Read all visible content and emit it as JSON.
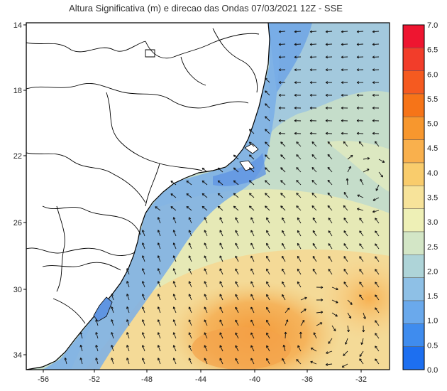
{
  "title": "Altura Significativa (m) e direcao das Ondas 07/03/2021 12Z - SSE",
  "axes": {
    "lat_ticks": [
      "14",
      "18",
      "22",
      "26",
      "30",
      "34"
    ],
    "lon_ticks": [
      "-56",
      "-52",
      "-48",
      "-44",
      "-40",
      "-36",
      "-32"
    ]
  },
  "colorbar": {
    "labels": [
      "7.0",
      "6.5",
      "6.0",
      "5.5",
      "5.0",
      "4.5",
      "4.0",
      "3.5",
      "3.0",
      "2.5",
      "2.0",
      "1.5",
      "1.0",
      "0.5",
      "0.0"
    ],
    "colors": [
      "#ee1530",
      "#f23d2a",
      "#f55a20",
      "#f67418",
      "#f7972e",
      "#f9b04d",
      "#f9cc6c",
      "#f7e39a",
      "#eef0b6",
      "#d3e6c6",
      "#aed4d8",
      "#8ec0e6",
      "#6aa9ec",
      "#3f8cee",
      "#1d6ff0"
    ]
  },
  "colors": {
    "land": "#ffffff",
    "ocean_low": "#6aa3e6",
    "ocean_mid": "#c9dfc6",
    "ocean_high": "#f3a14a",
    "borders": "#000000"
  }
}
